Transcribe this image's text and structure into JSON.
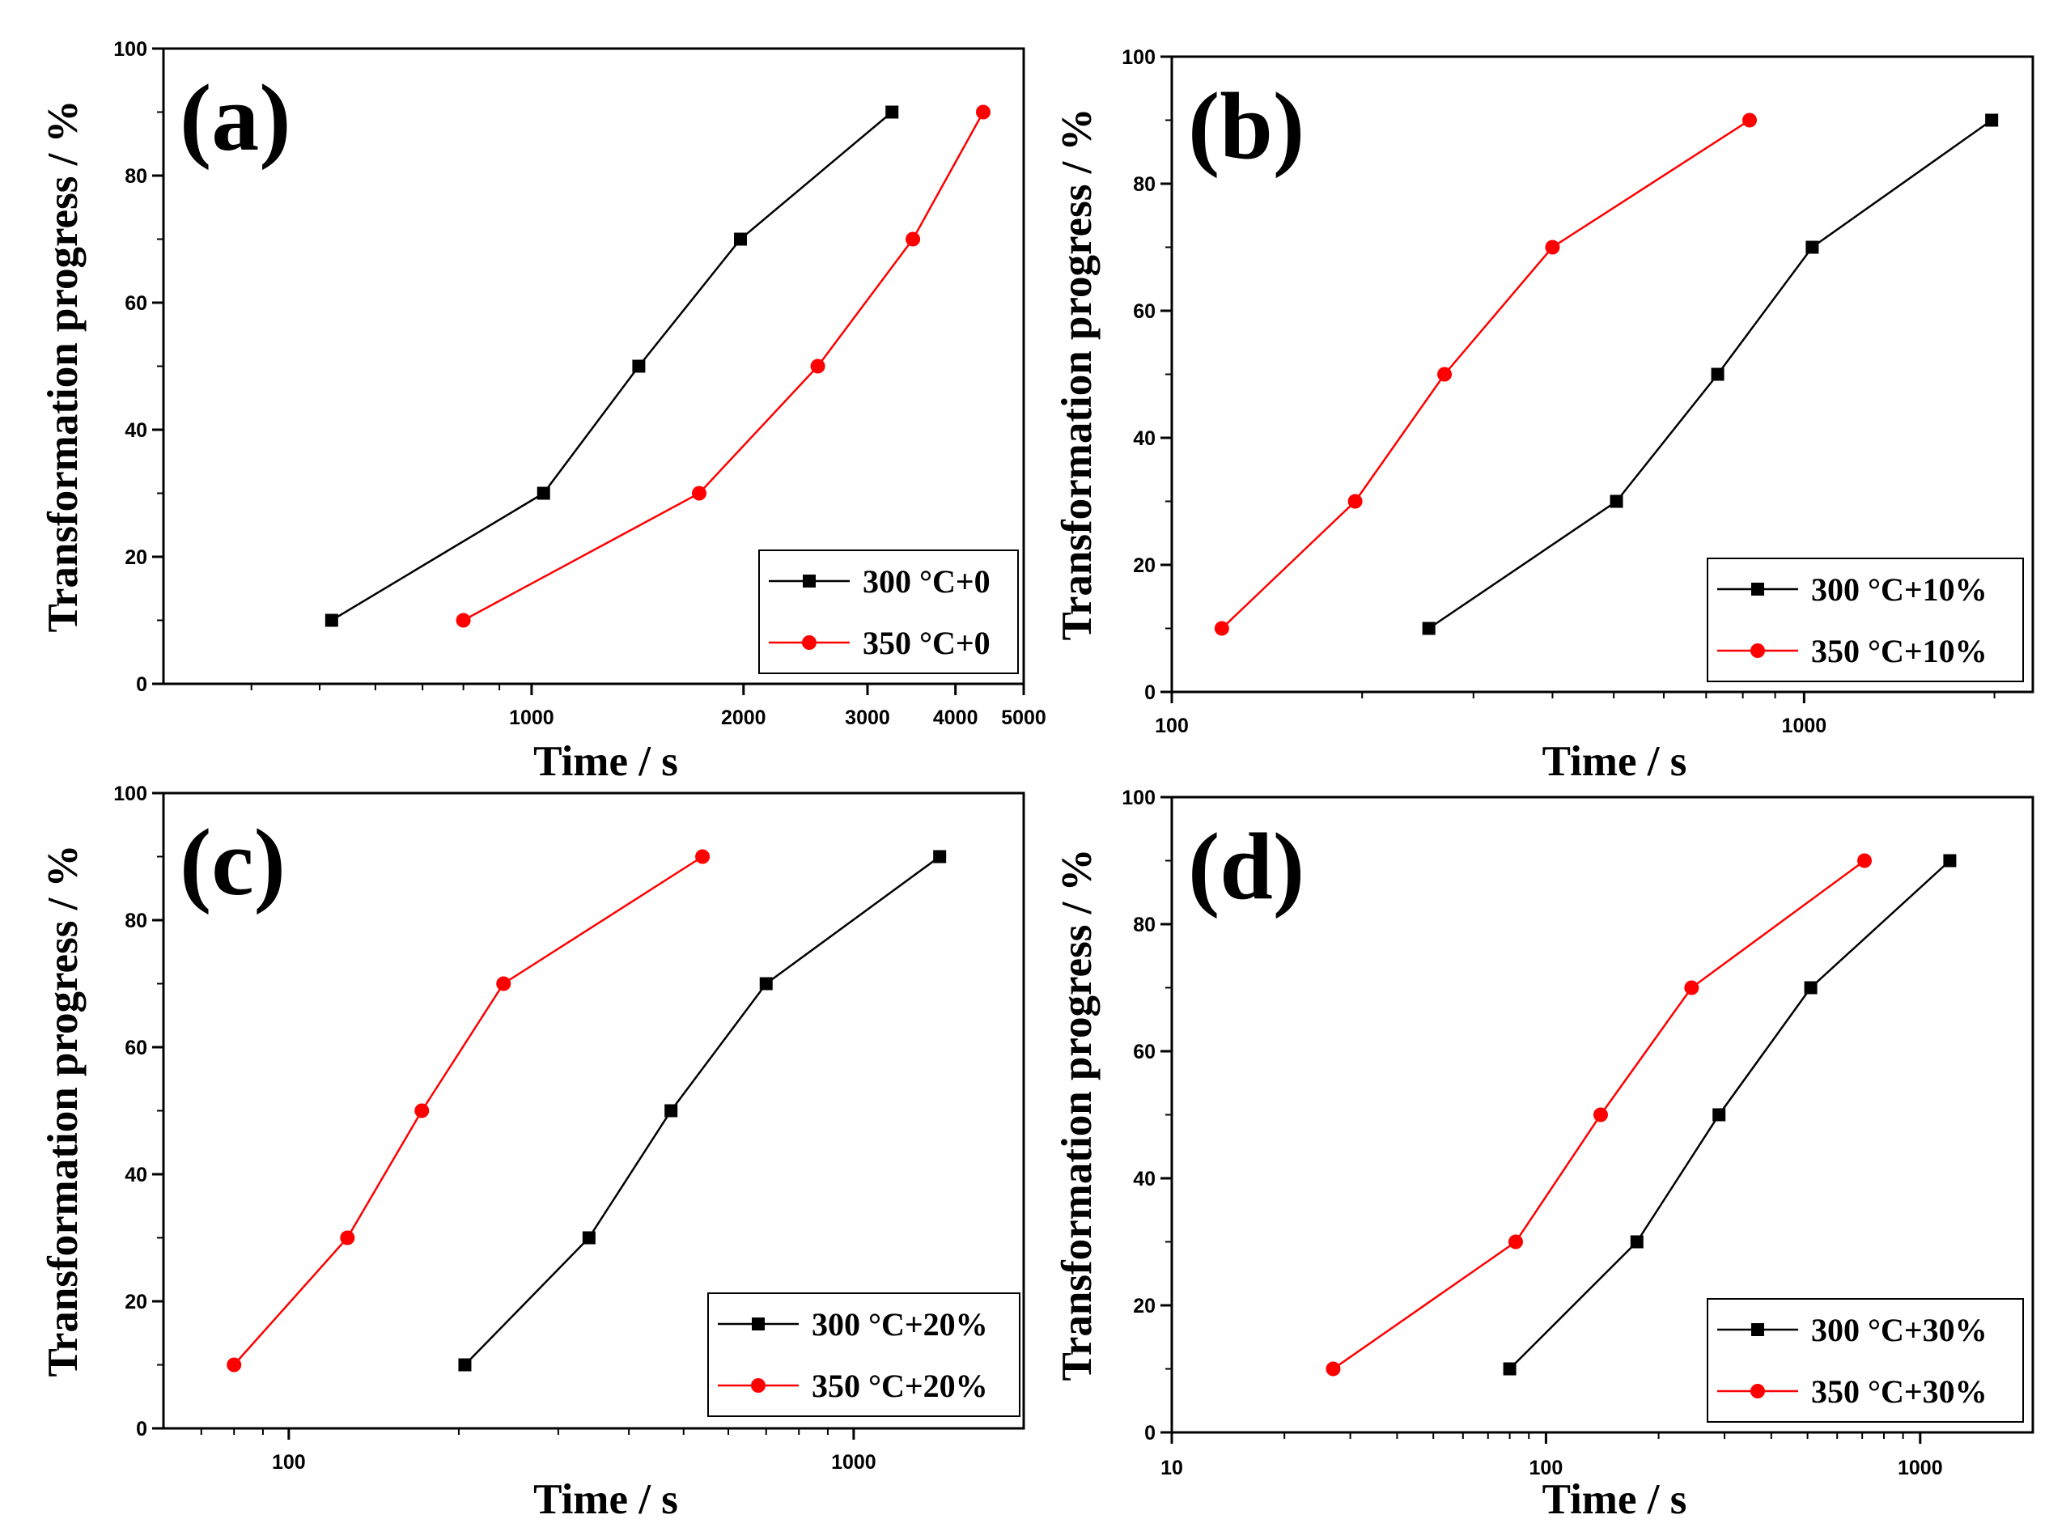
{
  "figure": {
    "colors": {
      "series_300": "#000000",
      "series_350": "#ff0000",
      "axis": "#000000",
      "background": "#ffffff"
    }
  },
  "chart_data": [
    {
      "panel": "(a)",
      "type": "line",
      "xscale": "log",
      "xlim": [
        300,
        5000
      ],
      "ylim": [
        0,
        100
      ],
      "xticks": [
        1000,
        2000,
        3000,
        4000,
        5000
      ],
      "xtick_labels": [
        "1000",
        "2000",
        "3000",
        "4000",
        "5000"
      ],
      "yticks": [
        0,
        20,
        40,
        60,
        80,
        100
      ],
      "ytick_labels": [
        "0",
        "20",
        "40",
        "60",
        "80",
        "100"
      ],
      "xlabel": "Time / s",
      "ylabel": "Transformation progress / %",
      "legend_position": "bottom-right",
      "series": [
        {
          "name": "300 °C+0",
          "marker": "square",
          "color": "#000000",
          "x": [
            520,
            1040,
            1420,
            1980,
            3250
          ],
          "y": [
            10,
            30,
            50,
            70,
            90
          ]
        },
        {
          "name": "350 °C+0",
          "marker": "circle",
          "color": "#ff0000",
          "x": [
            800,
            1730,
            2550,
            3480,
            4380
          ],
          "y": [
            10,
            30,
            50,
            70,
            90
          ]
        }
      ]
    },
    {
      "panel": "(b)",
      "type": "line",
      "xscale": "log",
      "xlim": [
        100,
        2300
      ],
      "ylim": [
        0,
        100
      ],
      "xticks": [
        100,
        1000
      ],
      "xtick_labels": [
        "100",
        "1000"
      ],
      "yticks": [
        0,
        20,
        40,
        60,
        80,
        100
      ],
      "ytick_labels": [
        "0",
        "20",
        "40",
        "60",
        "80",
        "100"
      ],
      "xlabel": "Time / s",
      "ylabel": "Transformation progress / %",
      "legend_position": "bottom-right",
      "series": [
        {
          "name": "300 °C+10%",
          "marker": "square",
          "color": "#000000",
          "x": [
            255,
            505,
            730,
            1030,
            1980
          ],
          "y": [
            10,
            30,
            50,
            70,
            90
          ]
        },
        {
          "name": "350 °C+10%",
          "marker": "circle",
          "color": "#ff0000",
          "x": [
            120,
            195,
            270,
            400,
            820
          ],
          "y": [
            10,
            30,
            50,
            70,
            90
          ]
        }
      ]
    },
    {
      "panel": "(c)",
      "type": "line",
      "xscale": "log",
      "xlim": [
        60,
        2000
      ],
      "ylim": [
        0,
        100
      ],
      "xticks": [
        100,
        1000
      ],
      "xtick_labels": [
        "100",
        "1000"
      ],
      "yticks": [
        0,
        20,
        40,
        60,
        80,
        100
      ],
      "ytick_labels": [
        "0",
        "20",
        "40",
        "60",
        "80",
        "100"
      ],
      "xlabel": "Time / s",
      "ylabel": "Transformation progress / %",
      "legend_position": "bottom-right",
      "series": [
        {
          "name": "300 °C+20%",
          "marker": "square",
          "color": "#000000",
          "x": [
            205,
            340,
            475,
            700,
            1420
          ],
          "y": [
            10,
            30,
            50,
            70,
            90
          ]
        },
        {
          "name": "350 °C+20%",
          "marker": "circle",
          "color": "#ff0000",
          "x": [
            80,
            127,
            172,
            240,
            540
          ],
          "y": [
            10,
            30,
            50,
            70,
            90
          ]
        }
      ]
    },
    {
      "panel": "(d)",
      "type": "line",
      "xscale": "log",
      "xlim": [
        10,
        2000
      ],
      "ylim": [
        0,
        100
      ],
      "xticks": [
        10,
        100,
        1000
      ],
      "xtick_labels": [
        "10",
        "100",
        "1000"
      ],
      "yticks": [
        0,
        20,
        40,
        60,
        80,
        100
      ],
      "ytick_labels": [
        "0",
        "20",
        "40",
        "60",
        "80",
        "100"
      ],
      "xlabel": "Time / s",
      "ylabel": "Transformation progress / %",
      "legend_position": "bottom-right",
      "series": [
        {
          "name": "300 °C+30%",
          "marker": "square",
          "color": "#000000",
          "x": [
            80,
            175,
            290,
            510,
            1200
          ],
          "y": [
            10,
            30,
            50,
            70,
            90
          ]
        },
        {
          "name": "350 °C+30%",
          "marker": "circle",
          "color": "#ff0000",
          "x": [
            27,
            83,
            140,
            245,
            710
          ],
          "y": [
            10,
            30,
            50,
            70,
            90
          ]
        }
      ]
    }
  ]
}
